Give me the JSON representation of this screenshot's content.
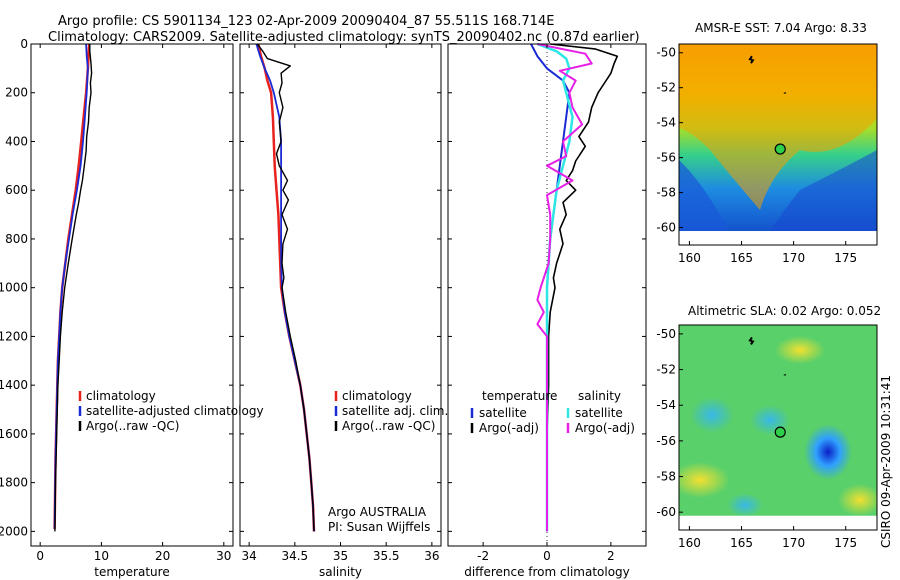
{
  "header": {
    "line1": "Argo profile: CS 5901134_123 02-Apr-2009 20090404_87 55.511S 168.714E",
    "line2": "Climatology: CARS2009. Satellite-adjusted climatology: synTS_20090402.nc (0.87d earlier)"
  },
  "footer_stamp": "CSIRO 09-Apr-2009 10:31:41",
  "colors": {
    "climatology": "#e8221e",
    "satellite": "#1a2bd6",
    "argo": "#000000",
    "diff_satellite_sal": "#2ee6e6",
    "diff_argo_sal": "#e620e6"
  },
  "chart_data": [
    {
      "id": "temperature_panel",
      "type": "line",
      "xlabel": "temperature",
      "ylabel": "",
      "xlim": [
        -1.5,
        31.5
      ],
      "ylim": [
        2060,
        0
      ],
      "xticks": [
        0,
        10,
        20,
        30
      ],
      "yticks": [
        0,
        200,
        400,
        600,
        800,
        1000,
        1200,
        1400,
        1600,
        1800,
        2000
      ],
      "legend": [
        "climatology",
        "satellite-adjusted climatology",
        "Argo(..raw -QC)"
      ],
      "series": [
        {
          "name": "climatology",
          "y": [
            0,
            50,
            100,
            200,
            300,
            400,
            500,
            600,
            700,
            800,
            900,
            1000,
            1100,
            1200,
            1300,
            1400,
            1500,
            1600,
            1700,
            1800,
            1900,
            1990
          ],
          "x": [
            8.0,
            7.9,
            7.8,
            7.5,
            7.1,
            6.7,
            6.3,
            5.8,
            5.2,
            4.6,
            4.1,
            3.6,
            3.3,
            3.1,
            2.9,
            2.8,
            2.7,
            2.6,
            2.5,
            2.45,
            2.4,
            2.35
          ]
        },
        {
          "name": "satellite-adjusted climatology",
          "y": [
            0,
            50,
            100,
            200,
            300,
            400,
            500,
            600,
            700,
            800,
            900,
            1000,
            1100,
            1200,
            1300,
            1400,
            1500,
            1600,
            1700,
            1800,
            1900,
            1990
          ],
          "x": [
            7.5,
            7.6,
            7.8,
            7.6,
            7.3,
            7.0,
            6.6,
            6.0,
            5.3,
            4.7,
            4.1,
            3.6,
            3.3,
            3.1,
            2.9,
            2.8,
            2.7,
            2.6,
            2.5,
            2.45,
            2.4,
            2.35
          ]
        },
        {
          "name": "Argo(..raw -QC)",
          "y": [
            0,
            30,
            80,
            120,
            160,
            200,
            260,
            320,
            380,
            440,
            500,
            560,
            600,
            650,
            700,
            760,
            820,
            900,
            1000,
            1100,
            1200,
            1300,
            1400,
            1500,
            1600,
            1700,
            1800,
            1900,
            2000
          ],
          "x": [
            8.1,
            8.1,
            8.3,
            8.4,
            8.2,
            8.3,
            8.0,
            7.9,
            7.6,
            7.5,
            7.2,
            6.9,
            6.6,
            6.3,
            5.9,
            5.5,
            5.1,
            4.6,
            4.0,
            3.6,
            3.3,
            3.1,
            2.9,
            2.8,
            2.7,
            2.6,
            2.5,
            2.45,
            2.4
          ]
        }
      ]
    },
    {
      "id": "salinity_panel",
      "type": "line",
      "xlabel": "salinity",
      "ylabel": "",
      "xlim": [
        33.9,
        36.1
      ],
      "ylim": [
        2060,
        0
      ],
      "xticks": [
        34,
        34.5,
        35,
        35.5,
        36
      ],
      "yticks": [
        0,
        200,
        400,
        600,
        800,
        1000,
        1200,
        1400,
        1600,
        1800,
        2000
      ],
      "legend": [
        "climatology",
        "satellite adj. clim.",
        "Argo(..raw -QC)"
      ],
      "annotations": [
        "Argo AUSTRALIA",
        "PI: Susan Wijffels"
      ],
      "series": [
        {
          "name": "climatology",
          "y": [
            0,
            50,
            100,
            150,
            200,
            300,
            400,
            500,
            600,
            700,
            800,
            900,
            1000,
            1100,
            1200,
            1300,
            1400,
            1500,
            1600,
            1700,
            1800,
            1900,
            2000
          ],
          "x": [
            34.1,
            34.13,
            34.17,
            34.2,
            34.24,
            34.26,
            34.27,
            34.28,
            34.3,
            34.32,
            34.33,
            34.34,
            34.35,
            34.39,
            34.44,
            34.5,
            34.56,
            34.6,
            34.63,
            34.66,
            34.68,
            34.7,
            34.71
          ]
        },
        {
          "name": "satellite adj. clim.",
          "y": [
            0,
            50,
            100,
            150,
            200,
            300,
            400,
            500,
            600,
            700,
            800,
            900,
            1000,
            1100,
            1200,
            1300,
            1400,
            1500,
            1600,
            1700,
            1800,
            1900,
            2000
          ],
          "x": [
            34.08,
            34.12,
            34.17,
            34.23,
            34.27,
            34.33,
            34.35,
            34.35,
            34.35,
            34.35,
            34.35,
            34.35,
            34.36,
            34.39,
            34.44,
            34.5,
            34.56,
            34.6,
            34.63,
            34.66,
            34.68,
            34.7,
            34.71
          ]
        },
        {
          "name": "Argo(..raw -QC)",
          "y": [
            0,
            30,
            60,
            90,
            120,
            160,
            200,
            260,
            320,
            400,
            450,
            500,
            560,
            600,
            640,
            700,
            760,
            820,
            900,
            960,
            1000,
            1100,
            1200,
            1300,
            1400,
            1500,
            1600,
            1700,
            1800,
            1900,
            2000
          ],
          "x": [
            34.09,
            34.15,
            34.2,
            34.45,
            34.35,
            34.36,
            34.33,
            34.37,
            34.33,
            34.35,
            34.3,
            34.33,
            34.42,
            34.37,
            34.43,
            34.36,
            34.42,
            34.37,
            34.36,
            34.38,
            34.36,
            34.4,
            34.45,
            34.51,
            34.56,
            34.6,
            34.63,
            34.66,
            34.68,
            34.7,
            34.71
          ]
        }
      ]
    },
    {
      "id": "difference_panel",
      "type": "line",
      "xlabel": "difference from climatology",
      "ylabel": "",
      "xlim": [
        -3.1,
        3.1
      ],
      "ylim": [
        2060,
        0
      ],
      "xticks": [
        -2,
        0,
        2
      ],
      "yticks": [
        0,
        200,
        400,
        600,
        800,
        1000,
        1200,
        1400,
        1600,
        1800,
        2000
      ],
      "legend": [
        {
          "group": "temperature",
          "entries": [
            "satellite",
            "Argo(-adj)"
          ]
        },
        {
          "group": "salinity",
          "entries": [
            "satellite",
            "Argo(-adj)"
          ]
        }
      ],
      "series": [
        {
          "name": "temperature satellite",
          "y": [
            0,
            50,
            100,
            150,
            200,
            300,
            400,
            500,
            600,
            700,
            800,
            900,
            1000,
            1100,
            1200,
            1400,
            1600,
            1800,
            2000
          ],
          "x": [
            -0.5,
            -0.3,
            0.0,
            0.5,
            0.7,
            0.6,
            0.5,
            0.4,
            0.3,
            0.2,
            0.1,
            0.05,
            0.0,
            0.0,
            0.0,
            0.0,
            0.0,
            0.0,
            0.0
          ]
        },
        {
          "name": "temperature Argo(-adj)",
          "y": [
            0,
            20,
            50,
            80,
            120,
            160,
            200,
            260,
            320,
            380,
            420,
            480,
            520,
            560,
            600,
            650,
            700,
            760,
            820,
            900,
            960,
            1000,
            1100,
            1200,
            1400,
            1600,
            1800,
            2000
          ],
          "x": [
            0.1,
            1.5,
            2.2,
            2.1,
            2.0,
            1.8,
            1.6,
            1.4,
            1.3,
            1.0,
            1.2,
            0.9,
            0.8,
            0.6,
            0.9,
            0.5,
            0.6,
            0.4,
            0.5,
            0.3,
            0.2,
            0.25,
            0.1,
            0.05,
            0.05,
            0.0,
            0.0,
            0.0
          ]
        },
        {
          "name": "salinity satellite",
          "y": [
            0,
            30,
            60,
            100,
            150,
            200,
            300,
            400,
            500,
            600,
            700,
            800,
            900,
            1000,
            1100,
            1200,
            1400,
            1600,
            1800,
            2000
          ],
          "x": [
            -0.3,
            0.3,
            0.6,
            0.7,
            0.5,
            0.6,
            0.8,
            0.7,
            0.5,
            0.3,
            0.2,
            0.1,
            0.05,
            0.0,
            0.0,
            0.0,
            0.0,
            0.0,
            0.0,
            0.0
          ]
        },
        {
          "name": "salinity Argo(-adj)",
          "y": [
            0,
            40,
            80,
            110,
            150,
            200,
            260,
            330,
            400,
            460,
            500,
            560,
            620,
            700,
            800,
            900,
            1000,
            1050,
            1100,
            1150,
            1200,
            1300,
            1400,
            1600,
            1800,
            2000
          ],
          "x": [
            -0.3,
            1.2,
            1.4,
            0.4,
            0.9,
            0.7,
            0.8,
            1.1,
            0.5,
            0.6,
            0.0,
            0.8,
            0.0,
            0.1,
            0.1,
            0.05,
            -0.2,
            -0.3,
            -0.1,
            -0.3,
            0.0,
            0.0,
            0.0,
            0.0,
            0.0,
            0.0
          ]
        }
      ]
    },
    {
      "id": "amsre_sst_map",
      "type": "heatmap",
      "title": "AMSR-E SST: 7.04 Argo: 8.33",
      "xlim": [
        159,
        178
      ],
      "ylim": [
        -61,
        -49.5
      ],
      "xticks": [
        160,
        165,
        170,
        175
      ],
      "yticks": [
        -50,
        -52,
        -54,
        -56,
        -58,
        -60
      ],
      "marker": {
        "lon": 168.714,
        "lat": -55.511
      }
    },
    {
      "id": "altimetric_sla_map",
      "type": "heatmap",
      "title": "Altimetric SLA: 0.02 Argo: 0.052",
      "xlim": [
        159,
        178
      ],
      "ylim": [
        -61,
        -49.5
      ],
      "xticks": [
        160,
        165,
        170,
        175
      ],
      "yticks": [
        -50,
        -52,
        -54,
        -56,
        -58,
        -60
      ],
      "marker": {
        "lon": 168.714,
        "lat": -55.511
      }
    }
  ]
}
